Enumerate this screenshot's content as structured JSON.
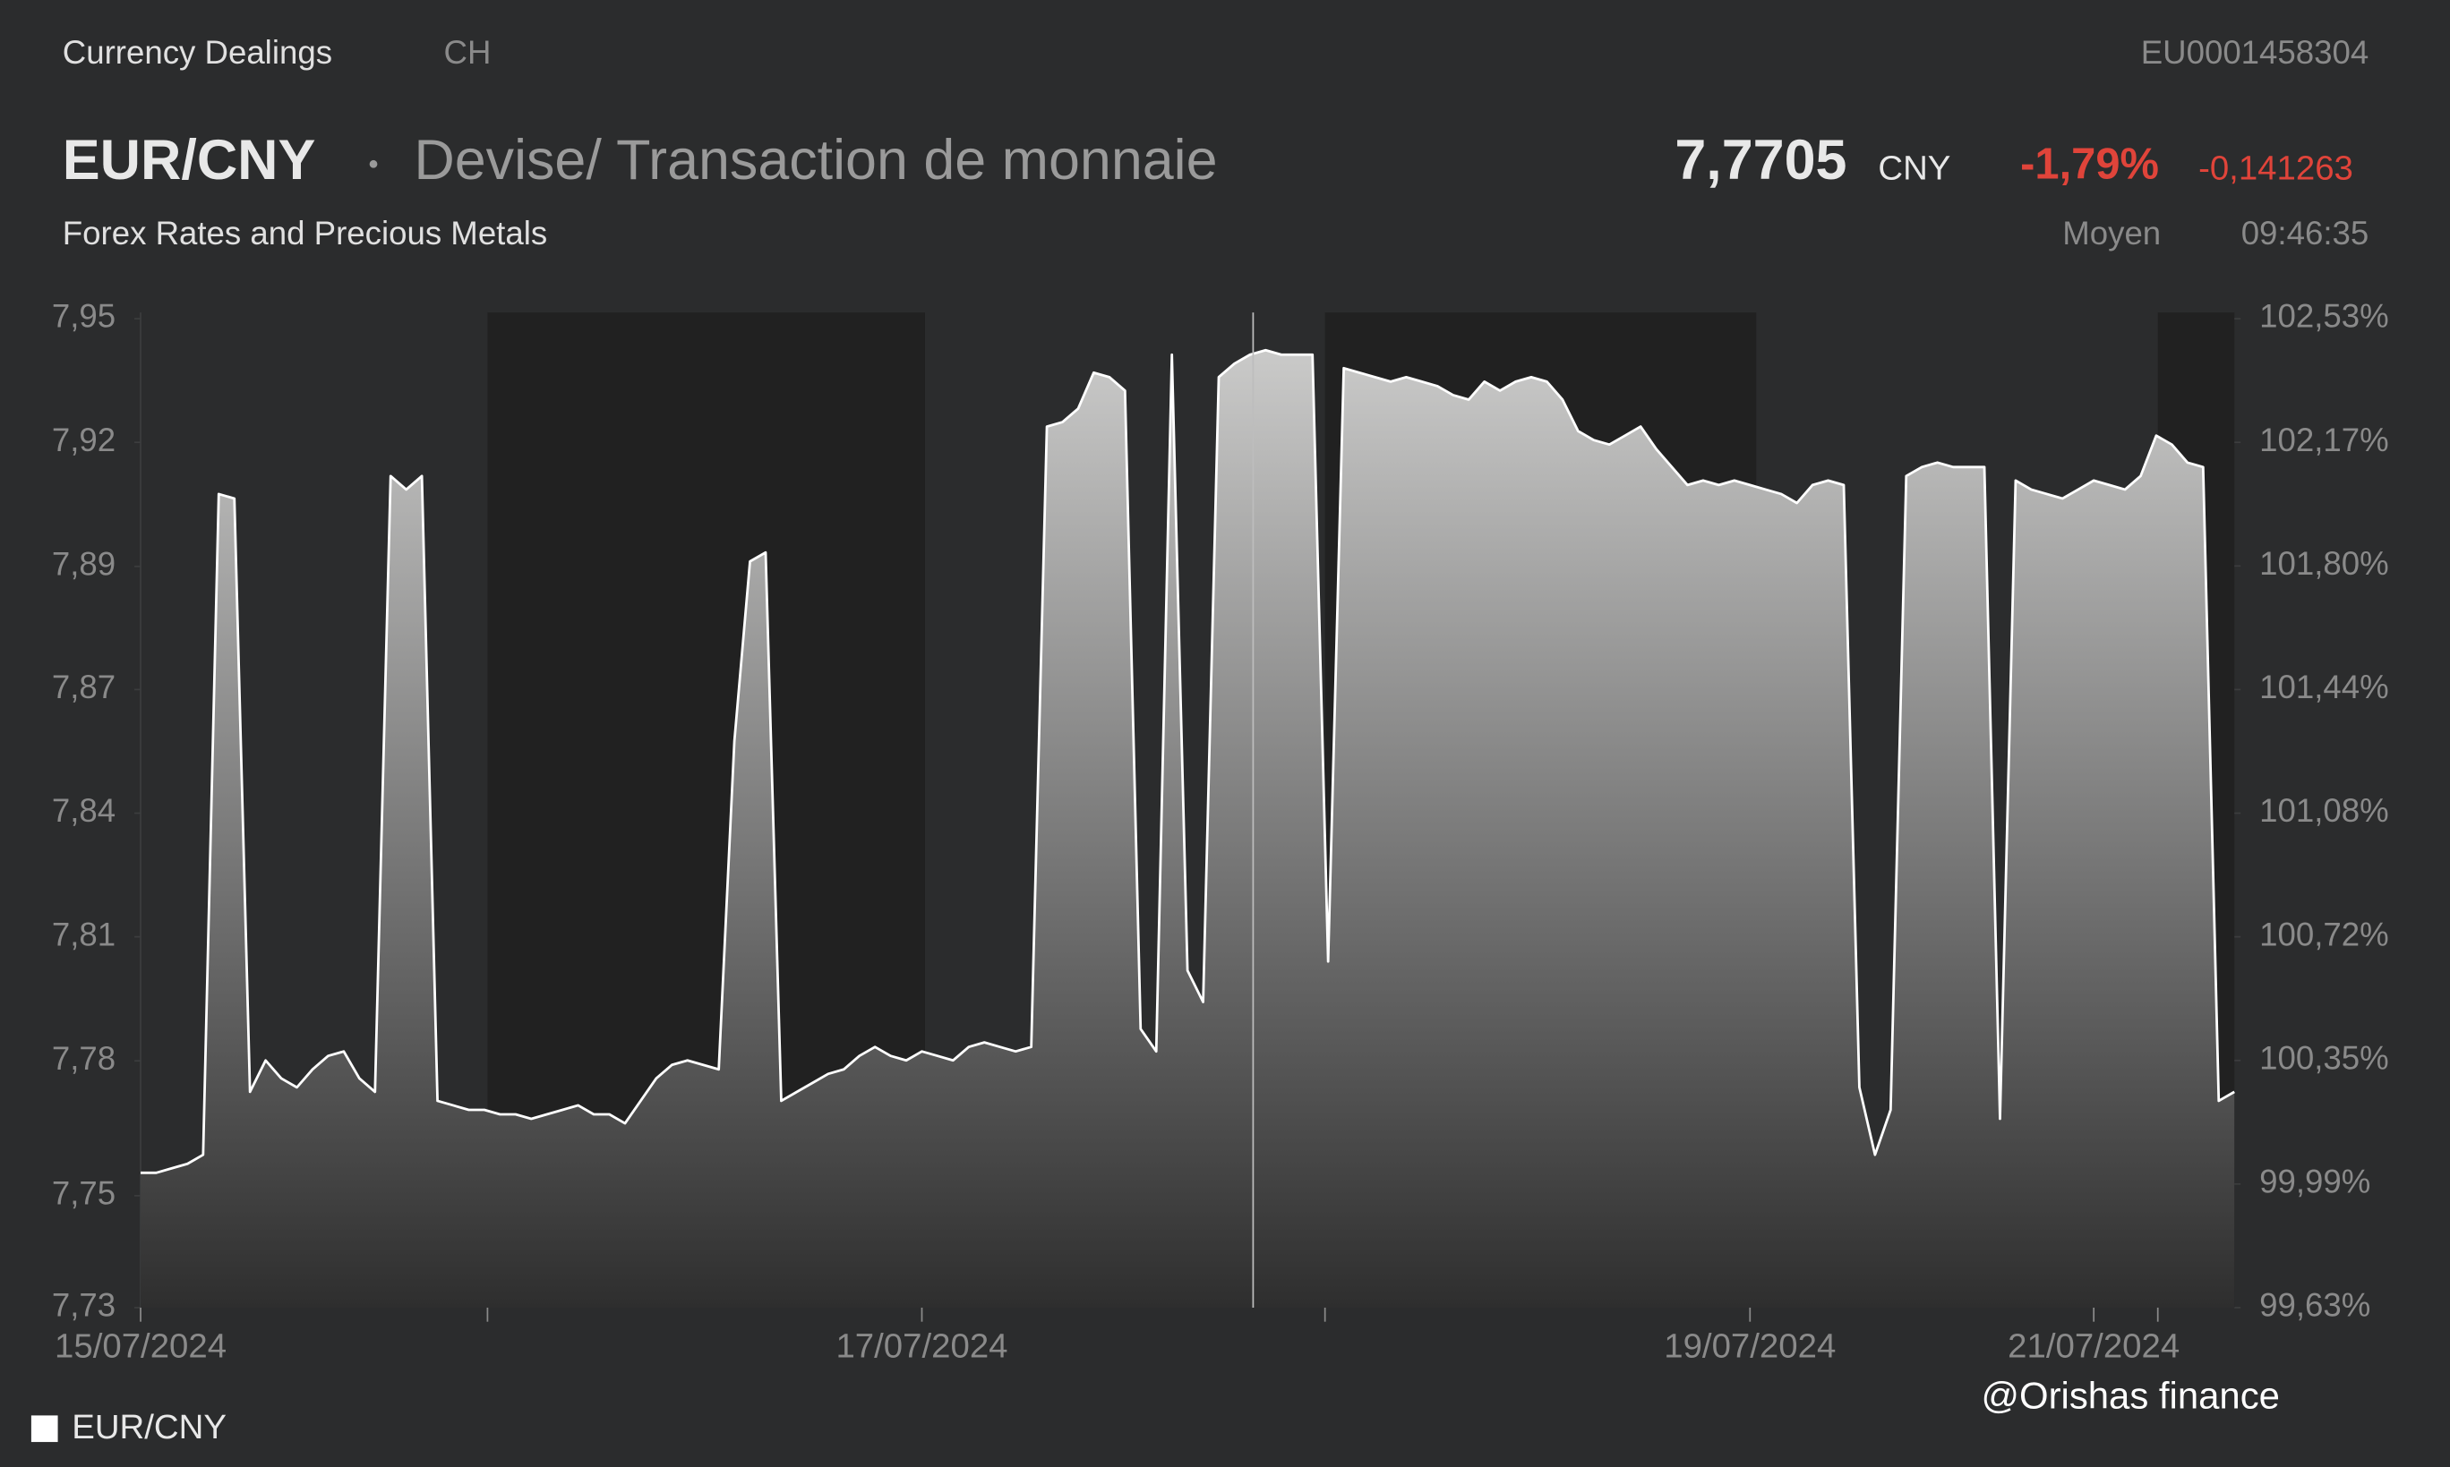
{
  "header": {
    "source": "Currency Dealings",
    "country": "CH",
    "isin": "EU0001458304",
    "symbol": "EUR/CNY",
    "description": "Devise/ Transaction de monnaie",
    "price": "7,7705",
    "currency": "CNY",
    "change_pct": "-1,79%",
    "change_abs": "-0,141263",
    "category": "Forex Rates and Precious Metals",
    "price_type": "Moyen",
    "time": "09:46:35"
  },
  "chart_data": {
    "type": "line",
    "area": true,
    "categories": [
      "15/07/2024",
      null,
      null,
      null,
      null,
      null,
      null,
      null,
      null,
      null,
      null,
      null,
      null,
      null,
      null,
      null,
      null,
      null,
      null,
      null,
      null,
      null,
      null,
      null,
      null,
      null,
      null,
      null,
      null,
      null,
      null,
      null,
      null,
      null,
      null,
      null,
      null,
      null,
      null,
      null,
      null,
      null,
      null,
      null,
      null,
      null,
      null,
      null,
      null,
      null,
      "17/07/2024",
      null,
      null,
      null,
      null,
      null,
      null,
      null,
      null,
      null,
      null,
      null,
      null,
      null,
      null,
      null,
      null,
      null,
      null,
      null,
      null,
      null,
      null,
      null,
      null,
      null,
      null,
      null,
      null,
      null,
      null,
      null,
      null,
      null,
      null,
      null,
      null,
      null,
      null,
      null,
      null,
      null,
      null,
      null,
      null,
      null,
      null,
      null,
      null,
      null,
      null,
      null,
      null,
      "19/07/2024",
      null,
      null,
      null,
      null,
      null,
      null,
      null,
      null,
      null,
      null,
      null,
      null,
      null,
      null,
      null,
      null,
      null,
      null,
      null,
      null,
      null,
      "21/07/2024",
      null,
      null,
      null,
      null,
      null,
      null,
      null,
      null,
      null
    ],
    "series": [
      {
        "name": "EUR/CNY",
        "color": "#ffffff",
        "values": [
          7.76,
          7.76,
          7.761,
          7.762,
          7.764,
          7.911,
          7.91,
          7.778,
          7.785,
          7.781,
          7.779,
          7.783,
          7.786,
          7.787,
          7.781,
          7.778,
          7.915,
          7.912,
          7.915,
          7.776,
          7.775,
          7.774,
          7.774,
          7.773,
          7.773,
          7.772,
          7.773,
          7.774,
          7.775,
          7.773,
          7.773,
          7.771,
          7.776,
          7.781,
          7.784,
          7.785,
          7.784,
          7.783,
          7.856,
          7.896,
          7.898,
          7.776,
          7.778,
          7.78,
          7.782,
          7.783,
          7.786,
          7.788,
          7.786,
          7.785,
          7.787,
          7.786,
          7.785,
          7.788,
          7.789,
          7.788,
          7.787,
          7.788,
          7.926,
          7.927,
          7.93,
          7.938,
          7.937,
          7.934,
          7.792,
          7.787,
          7.942,
          7.805,
          7.798,
          7.937,
          7.94,
          7.942,
          7.943,
          7.942,
          7.942,
          7.942,
          7.807,
          7.939,
          7.938,
          7.937,
          7.936,
          7.937,
          7.936,
          7.935,
          7.933,
          7.932,
          7.936,
          7.934,
          7.936,
          7.937,
          7.936,
          7.932,
          7.925,
          7.923,
          7.922,
          7.924,
          7.926,
          7.921,
          7.917,
          7.913,
          7.914,
          7.913,
          7.914,
          7.913,
          7.912,
          7.911,
          7.909,
          7.913,
          7.914,
          7.913,
          7.779,
          7.764,
          7.774,
          7.915,
          7.917,
          7.918,
          7.917,
          7.917,
          7.917,
          7.772,
          7.914,
          7.912,
          7.911,
          7.91,
          7.912,
          7.914,
          7.913,
          7.912,
          7.915,
          7.924,
          7.922,
          7.918,
          7.917,
          7.776,
          7.778
        ]
      }
    ],
    "ylim": [
      7.73,
      7.95
    ],
    "yticks": [
      {
        "value": 7.73,
        "label": "7,73"
      },
      {
        "value": 7.7549,
        "label": "7,75"
      },
      {
        "value": 7.7849,
        "label": "7,78"
      },
      {
        "value": 7.8125,
        "label": "7,81"
      },
      {
        "value": 7.84,
        "label": "7,84"
      },
      {
        "value": 7.8675,
        "label": "7,87"
      },
      {
        "value": 7.8949,
        "label": "7,89"
      },
      {
        "value": 7.9225,
        "label": "7,92"
      },
      {
        "value": 7.95,
        "label": "7,95"
      }
    ],
    "y2lim": [
      99.63,
      102.53
    ],
    "y2ticks": [
      {
        "value": 99.63,
        "label": "99,63%"
      },
      {
        "value": 99.9925,
        "label": "99,99%"
      },
      {
        "value": 100.3549,
        "label": "100,35%"
      },
      {
        "value": 100.7175,
        "label": "100,72%"
      },
      {
        "value": 101.08,
        "label": "101,08%"
      },
      {
        "value": 101.4425,
        "label": "101,44%"
      },
      {
        "value": 101.8049,
        "label": "101,80%"
      },
      {
        "value": 102.1675,
        "label": "102,17%"
      },
      {
        "value": 102.53,
        "label": "102,53%"
      }
    ],
    "annotation": "@Orishas finance"
  }
}
